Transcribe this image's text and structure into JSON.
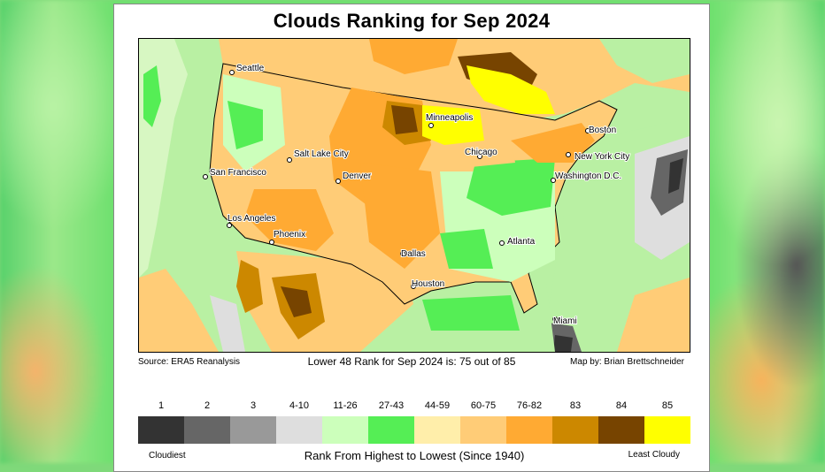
{
  "title": "Clouds Ranking for Sep 2024",
  "source": "Source: ERA5 Reanalysis",
  "rank_summary": "Lower 48 Rank for Sep 2024 is: 75 out of 85",
  "credit": "Map by: Brian Brettschneider",
  "cities": [
    "Seattle",
    "San Francisco",
    "Los Angeles",
    "Phoenix",
    "Salt Lake City",
    "Denver",
    "Minneapolis",
    "Chicago",
    "Dallas",
    "Houston",
    "Atlanta",
    "Boston",
    "New York City",
    "Washington D.C.",
    "Miami"
  ],
  "legend": {
    "labels": [
      "1",
      "2",
      "3",
      "4-10",
      "11-26",
      "27-43",
      "44-59",
      "60-75",
      "76-82",
      "83",
      "84",
      "85"
    ],
    "colors": [
      "#333333",
      "#666666",
      "#999999",
      "#dedede",
      "#ccffbb",
      "#55ee55",
      "#ffeeaa",
      "#ffcc77",
      "#ffaa33",
      "#cc8800",
      "#774400",
      "#ffff00"
    ],
    "low_end": "Cloudiest",
    "high_end": "Least Cloudy",
    "axis_title": "Rank From Highest to Lowest (Since 1940)"
  }
}
